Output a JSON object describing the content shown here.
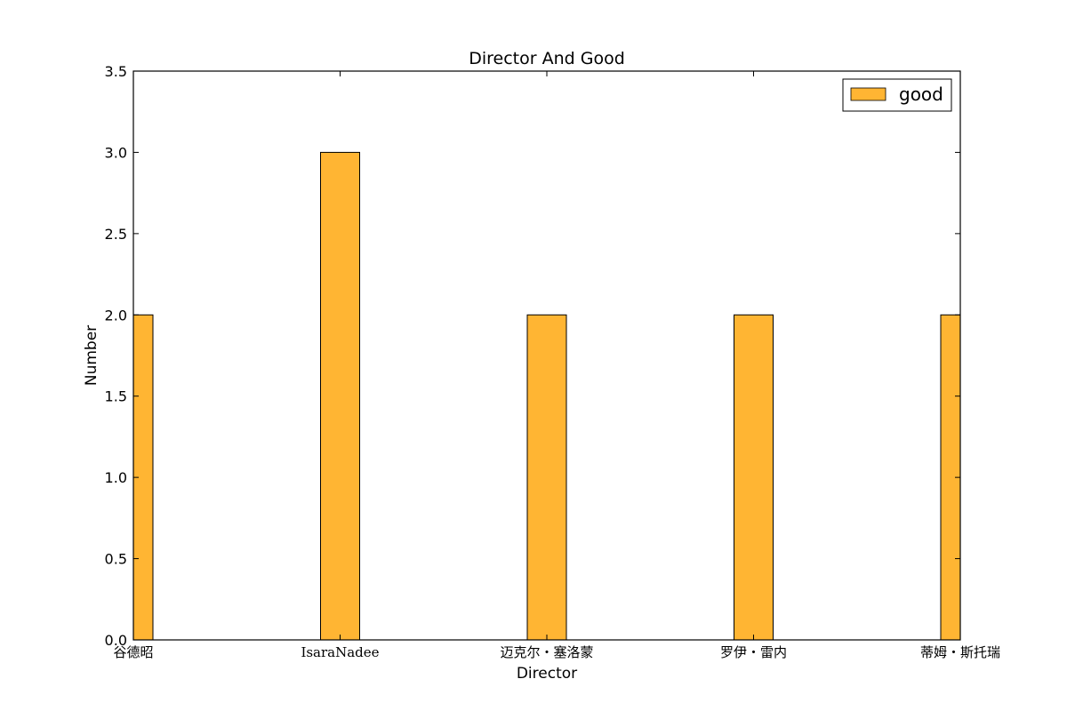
{
  "chart_data": {
    "type": "bar",
    "title": "Director And Good",
    "xlabel": "Director",
    "ylabel": "Number",
    "categories": [
      "谷德昭",
      "IsaraNadee",
      "迈克尔・塞洛蒙",
      "罗伊・雷内",
      "蒂姆・斯托瑞"
    ],
    "series": [
      {
        "name": "good",
        "values": [
          2,
          3,
          2,
          2,
          2
        ],
        "color": "#ffb533"
      }
    ],
    "ylim": [
      0,
      3.5
    ],
    "yticks": [
      "0.0",
      "0.5",
      "1.0",
      "1.5",
      "2.0",
      "2.5",
      "3.0",
      "3.5"
    ],
    "grid": false,
    "legend_position": "top-right"
  }
}
